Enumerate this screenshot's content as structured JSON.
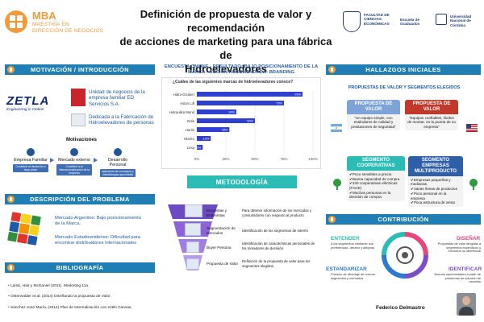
{
  "header": {
    "brand": "MBA",
    "program_line1": "MAESTRÍA EN",
    "program_line2": "DIRECCIÓN DE NEGOCIOS",
    "title_line1": "Definición de propuesta de valor y recomendación",
    "title_line2": "de acciones de marketing para una fábrica de",
    "title_line3": "Hidroelevadores",
    "inst1": "FACULTAD DE CIENCIAS ECONÓMICAS",
    "inst2": "Escuela de Graduados",
    "inst3": "Universidad Nacional de Córdoba"
  },
  "sections": {
    "motivacion": "MOTIVACIÓN / INTRODUCCIÓN",
    "problema": "DESCRIPCIÓN DEL PROBLEMA",
    "bibliografia": "BIBLIOGRAFÍA",
    "metodologia": "METODOLOGÍA",
    "hallazgos": "HALLAZGOS INICIALES",
    "contribucion": "CONTRIBUCIÓN"
  },
  "intro": {
    "logo": "ZETLA",
    "logo_tag": "Engineering in motion",
    "item1": "Unidad de negocios de la empresa familiar ED Servicios S.A.",
    "item2": "Dedicada a la Fabricación de Hidroelevadores de personas",
    "motivaciones_title": "Motivaciones",
    "motivaciones": [
      {
        "label": "Empresa Familiar",
        "desc": "Contribuir al desarrollo a largo plazo"
      },
      {
        "label": "Mercado externo",
        "desc": "Contribuir a la internacionalización de la empresa"
      },
      {
        "label": "Desarrollo Personal",
        "desc": "Aplicación de conceptos y metodologías aprendidas"
      }
    ]
  },
  "problema": {
    "item1": "Mercado Argentino: Bajo posicionamiento de la Marca.",
    "item2": "Mercado Estadounidense: Dificultad para encontrar distribuidores internacionales"
  },
  "bibliografia": [
    "Lamb, Hair y McDaniel (2011). Marketing 11a.",
    "Osterwalder et al. (2014) Diseñando la propuesta de Valor.",
    "Sánchez José María, (2014) Plan de Internalización con estilo Canvas."
  ],
  "survey": {
    "heading1": "ENCUESTA ONLINE - RESULTADO: BAJO POSICIONAMIENTO DE LA",
    "heading2": "MARCA - ACCIÓN RECOMENDADA: BRANDING",
    "question": "¿Cuáles de las siguientes marcas de hidroelevadores conoce?"
  },
  "chart_data": {
    "type": "bar",
    "orientation": "horizontal",
    "title": "¿Cuáles de las siguientes marcas de hidroelevadores conoce?",
    "categories": [
      "Hidro-Grubert",
      "Aston Lift",
      "Hidraulika Mend",
      "Zetla",
      "Harilo",
      "Oberto",
      "Lesa"
    ],
    "values": [
      91,
      75,
      34,
      50,
      28,
      12,
      5
    ],
    "value_labels": [
      "91%",
      "75%",
      "34%",
      "50%",
      "28%",
      "12%",
      "5%"
    ],
    "xlim": [
      0,
      100
    ],
    "ticks": [
      "0%",
      "25%",
      "50%",
      "75%",
      "100%"
    ],
    "grid": true,
    "color": "#2f3fd0"
  },
  "metodologia": [
    {
      "label": "Encuestas y Entrevistas",
      "desc": "Para obtener información de los mercados y consumidores con respecto al producto"
    },
    {
      "label": "Segmentación de Mercados",
      "desc": "Identificación de los segmentos de interés"
    },
    {
      "label": "Buyer Persona",
      "desc": "Identificación de características personales de los tomadores de decisión"
    },
    {
      "label": "Propuesta de Valor",
      "desc": "Definición de la propuesta de valor para los segmentos elegidos"
    }
  ],
  "hallazgos": {
    "title": "PROPUESTAS DE VALOR Y SEGMENTOS ELEGIDOS",
    "pv_ar_title": "PROPUESTA DE VALOR",
    "pv_ar_text": "\"Un equipo simple, con estándares de calidad y prestaciones de seguridad\"",
    "pv_us_title": "PROPUESTA DE VALOR",
    "pv_us_text": "\"Equipos confiables, fáciles de montar, en la puerta de su empresa\"",
    "seg_ar_title": "SEGMENTO COOPERATIVAS",
    "seg_ar_items": [
      "Poco sensibles a precio",
      "Buena capacidad de compra",
      "240 cooperativas eléctricas (FACE)",
      "Muchas personas en la decisión de compra."
    ],
    "seg_us_title": "SEGMENTO EMPRESAS MULTIPRODUCTO",
    "seg_us_items": [
      "Empresas pequeñas y medianas.",
      "Varias líneas de productos",
      "Poco personal en la empresa",
      "Poca estructura de venta"
    ]
  },
  "contribucion": {
    "entender": "ENTENDER",
    "entender_desc": "A los segmentos mediante sus preferencias, deseos y alegrías",
    "disenar": "DISEÑAR",
    "disenar_desc": "Propuestas de valor dirigidas a segmentos específicos y encontrar su diferencial",
    "estandarizar": "ESTANDARIZAR",
    "estandarizar_desc": "Proceso de abordaje de nuevos segmentos y mercados",
    "identificar": "IDENTIFICAR",
    "identificar_desc": "Nuevas oportunidades a partir de problemas de solución de usuarios"
  },
  "author": "Federico Delmastro"
}
